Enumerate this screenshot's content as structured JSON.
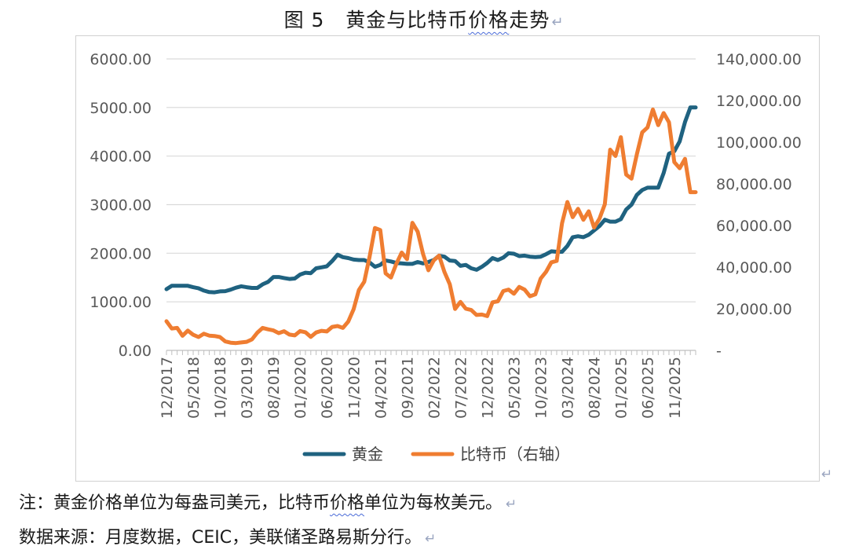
{
  "figure": {
    "title_prefix": "图 5",
    "title_main": "黄金与比特币",
    "title_wavy": "价格",
    "title_suffix": "走势",
    "return_mark": "↵"
  },
  "notes": {
    "line1_pre": "注：黄金价格单位为每盎司美元，比特币",
    "line1_wavy": "价格",
    "line1_post": "单位为每枚美元。",
    "line2": "数据来源：月度数据，CEIC，美联储圣路易斯分行。",
    "return_mark": "↵"
  },
  "colors": {
    "gold": "#1f6280",
    "bitcoin": "#ef7d31",
    "grid": "#d9d9d9",
    "axis_text": "#595959"
  },
  "chart_data": {
    "type": "line",
    "title": "黄金与比特币价格走势",
    "grid": true,
    "legend_position": "bottom",
    "x_tick_labels": [
      "12/2017",
      "05/2018",
      "10/2018",
      "03/2019",
      "08/2019",
      "01/2020",
      "06/2020",
      "11/2020",
      "04/2021",
      "09/2021",
      "02/2022",
      "07/2022",
      "12/2022",
      "05/2023",
      "10/2023",
      "03/2024",
      "08/2024",
      "01/2025",
      "06/2025",
      "11/2025"
    ],
    "y_left": {
      "ticks": [
        "0.00",
        "1000.00",
        "2000.00",
        "3000.00",
        "4000.00",
        "5000.00",
        "6000.00"
      ],
      "ylim": [
        0,
        6000
      ]
    },
    "y_right": {
      "ticks": [
        "-",
        "20,000.00",
        "40,000.00",
        "60,000.00",
        "80,000.00",
        "100,000.00",
        "120,000.00",
        "140,000.00"
      ],
      "ylim": [
        0,
        140000
      ]
    },
    "x": [
      "2017-12",
      "2018-01",
      "2018-02",
      "2018-03",
      "2018-04",
      "2018-05",
      "2018-06",
      "2018-07",
      "2018-08",
      "2018-09",
      "2018-10",
      "2018-11",
      "2018-12",
      "2019-01",
      "2019-02",
      "2019-03",
      "2019-04",
      "2019-05",
      "2019-06",
      "2019-07",
      "2019-08",
      "2019-09",
      "2019-10",
      "2019-11",
      "2019-12",
      "2020-01",
      "2020-02",
      "2020-03",
      "2020-04",
      "2020-05",
      "2020-06",
      "2020-07",
      "2020-08",
      "2020-09",
      "2020-10",
      "2020-11",
      "2020-12",
      "2021-01",
      "2021-02",
      "2021-03",
      "2021-04",
      "2021-05",
      "2021-06",
      "2021-07",
      "2021-08",
      "2021-09",
      "2021-10",
      "2021-11",
      "2021-12",
      "2022-01",
      "2022-02",
      "2022-03",
      "2022-04",
      "2022-05",
      "2022-06",
      "2022-07",
      "2022-08",
      "2022-09",
      "2022-10",
      "2022-11",
      "2022-12",
      "2023-01",
      "2023-02",
      "2023-03",
      "2023-04",
      "2023-05",
      "2023-06",
      "2023-07",
      "2023-08",
      "2023-09",
      "2023-10",
      "2023-11",
      "2023-12",
      "2024-01",
      "2024-02",
      "2024-03",
      "2024-04",
      "2024-05",
      "2024-06",
      "2024-07",
      "2024-08",
      "2024-09",
      "2024-10",
      "2024-11",
      "2024-12",
      "2025-01",
      "2025-02",
      "2025-03",
      "2025-04",
      "2025-05",
      "2025-06",
      "2025-07",
      "2025-08",
      "2025-09",
      "2025-10",
      "2025-11",
      "2025-12",
      "2026-01",
      "2026-02",
      "2026-03"
    ],
    "series": [
      {
        "name": "黄金",
        "axis": "left",
        "values": [
          1260,
          1330,
          1330,
          1330,
          1330,
          1300,
          1280,
          1230,
          1200,
          1195,
          1215,
          1220,
          1250,
          1290,
          1320,
          1300,
          1285,
          1285,
          1360,
          1410,
          1510,
          1510,
          1490,
          1470,
          1480,
          1560,
          1600,
          1590,
          1690,
          1710,
          1730,
          1840,
          1970,
          1920,
          1900,
          1870,
          1860,
          1860,
          1810,
          1720,
          1760,
          1850,
          1830,
          1800,
          1790,
          1780,
          1780,
          1820,
          1790,
          1820,
          1860,
          1950,
          1930,
          1850,
          1840,
          1740,
          1760,
          1690,
          1660,
          1720,
          1800,
          1900,
          1860,
          1910,
          2000,
          1990,
          1940,
          1950,
          1930,
          1920,
          1930,
          1980,
          2040,
          2030,
          2030,
          2150,
          2330,
          2350,
          2330,
          2380,
          2470,
          2560,
          2690,
          2650,
          2650,
          2700,
          2900,
          3000,
          3200,
          3300,
          3350,
          3350,
          3350,
          3650,
          4050,
          4100,
          4300,
          4700,
          5000,
          5000
        ],
        "color": "#1f6280"
      },
      {
        "name": "比特币（右轴）",
        "axis": "right",
        "values": [
          14000,
          10500,
          10800,
          7000,
          9500,
          7500,
          6400,
          8000,
          7100,
          6900,
          6400,
          4300,
          3700,
          3500,
          3800,
          4100,
          5300,
          8500,
          10800,
          10100,
          9600,
          8300,
          9200,
          7600,
          7200,
          9300,
          8700,
          6500,
          8600,
          9400,
          9100,
          11300,
          11700,
          10800,
          13800,
          19700,
          29000,
          33000,
          45000,
          58800,
          57800,
          37000,
          35000,
          41500,
          47000,
          43800,
          61300,
          57000,
          46300,
          38500,
          43200,
          45500,
          37700,
          31800,
          19900,
          23300,
          20000,
          19400,
          17000,
          17200,
          16500,
          23100,
          23600,
          28500,
          29200,
          27200,
          30500,
          29200,
          26000,
          26900,
          34500,
          37700,
          42300,
          43000,
          61100,
          71300,
          64000,
          68000,
          62700,
          66800,
          59000,
          63300,
          70200,
          96400,
          93400,
          102400,
          84400,
          82500,
          94200,
          104700,
          107100,
          115700,
          108200,
          114000,
          109600,
          90400,
          87500,
          92000,
          76000,
          76000
        ],
        "color": "#ef7d31"
      }
    ]
  }
}
